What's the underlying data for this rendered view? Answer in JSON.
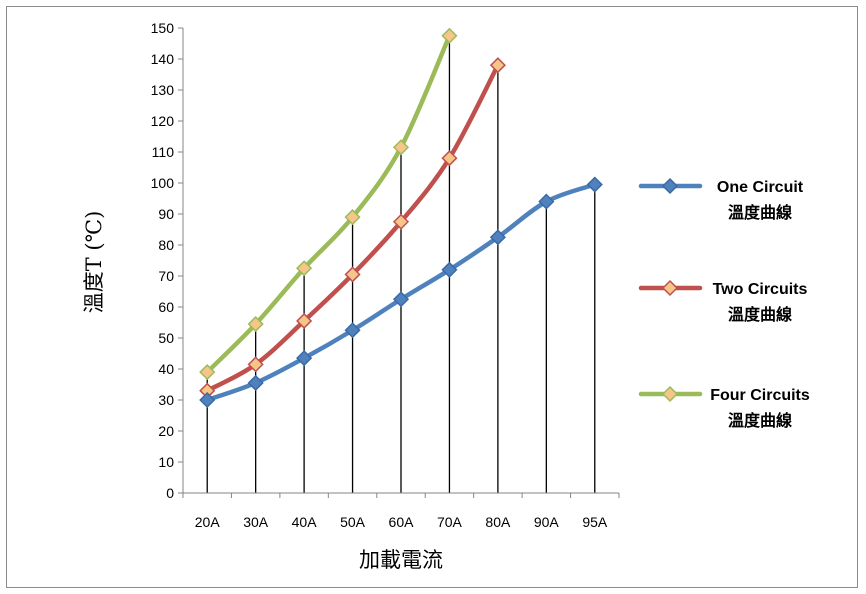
{
  "chart_data": {
    "type": "line",
    "categories": [
      "20A",
      "30A",
      "40A",
      "50A",
      "60A",
      "70A",
      "80A",
      "90A",
      "95A"
    ],
    "ylim": [
      0,
      150
    ],
    "ytick_step": 10,
    "xlabel": "加載電流",
    "ylabel": "溫度T (℃)",
    "grid": "vertical drop lines",
    "legend_position": "right",
    "series": [
      {
        "name": "One Circuit",
        "name_line2": "溫度曲線",
        "color": "#4f81bd",
        "values": [
          30,
          35.5,
          43.5,
          52.5,
          62.5,
          72,
          82.5,
          94,
          99.5
        ]
      },
      {
        "name": "Two Circuits",
        "name_line2": "溫度曲線",
        "color": "#c0504d",
        "values": [
          33,
          41.5,
          55.5,
          70.5,
          87.5,
          108,
          138,
          null,
          null
        ]
      },
      {
        "name": "Four Circuits",
        "name_line2": "溫度曲線",
        "color": "#9bbb59",
        "values": [
          39,
          54.5,
          72.5,
          89,
          111.5,
          147.5,
          null,
          null,
          null
        ]
      }
    ]
  }
}
